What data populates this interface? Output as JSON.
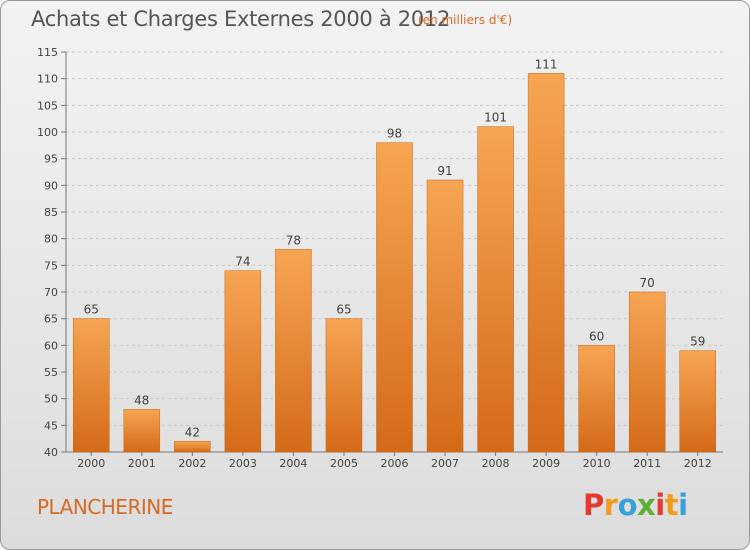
{
  "header": {
    "title": "Achats et Charges Externes 2000 à 2012",
    "subtitle": "(en milliers d'€)"
  },
  "footer": {
    "commune": "PLANCHERINE",
    "logo_text": "Proxiti"
  },
  "colors": {
    "bar_top": "#f6a553",
    "bar_bottom": "#d46a18",
    "accent": "#d86a24",
    "logo_letters": [
      "#e63a2e",
      "#f39a1c",
      "#3aa0d8",
      "#5cb031",
      "#e63a2e",
      "#f39a1c",
      "#3aa0d8"
    ]
  },
  "chart_data": {
    "type": "bar",
    "categories": [
      "2000",
      "2001",
      "2002",
      "2003",
      "2004",
      "2005",
      "2006",
      "2007",
      "2008",
      "2009",
      "2010",
      "2011",
      "2012"
    ],
    "values": [
      65,
      48,
      42,
      74,
      78,
      65,
      98,
      91,
      101,
      111,
      60,
      70,
      59
    ],
    "data_labels": [
      "65",
      "48",
      "42",
      "74",
      "78",
      "65",
      "98",
      "91",
      "101",
      "111",
      "60",
      "70",
      "59"
    ],
    "ylim": [
      40,
      115
    ],
    "yticks": [
      40,
      45,
      50,
      55,
      60,
      65,
      70,
      75,
      80,
      85,
      90,
      95,
      100,
      105,
      110,
      115
    ],
    "ytick_labels": [
      "40",
      "45",
      "50",
      "55",
      "60",
      "65",
      "70",
      "75",
      "80",
      "85",
      "90",
      "95",
      "100",
      "105",
      "110",
      "115"
    ],
    "grid": true,
    "title": "Achats et Charges Externes 2000 à 2012",
    "xlabel": "",
    "ylabel": ""
  }
}
